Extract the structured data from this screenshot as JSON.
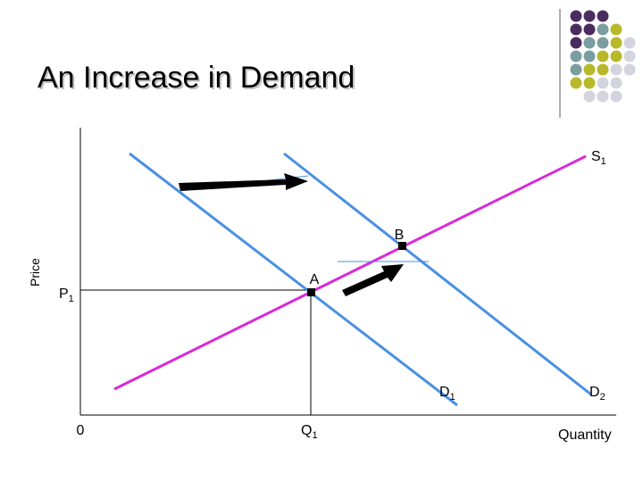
{
  "header": {
    "title": "An Increase in Demand"
  },
  "axes": {
    "y_label": "Price",
    "x_label": "Quantity",
    "origin": "0"
  },
  "curves": {
    "supply": {
      "text": "S",
      "sub": "1"
    },
    "demand_1": {
      "text": "D",
      "sub": "1"
    },
    "demand_2": {
      "text": "D",
      "sub": "2"
    }
  },
  "points": {
    "a": "A",
    "b": "B"
  },
  "levels": {
    "price": {
      "text": "P",
      "sub": "1"
    },
    "quantity": {
      "text": "Q",
      "sub": "1"
    }
  }
}
